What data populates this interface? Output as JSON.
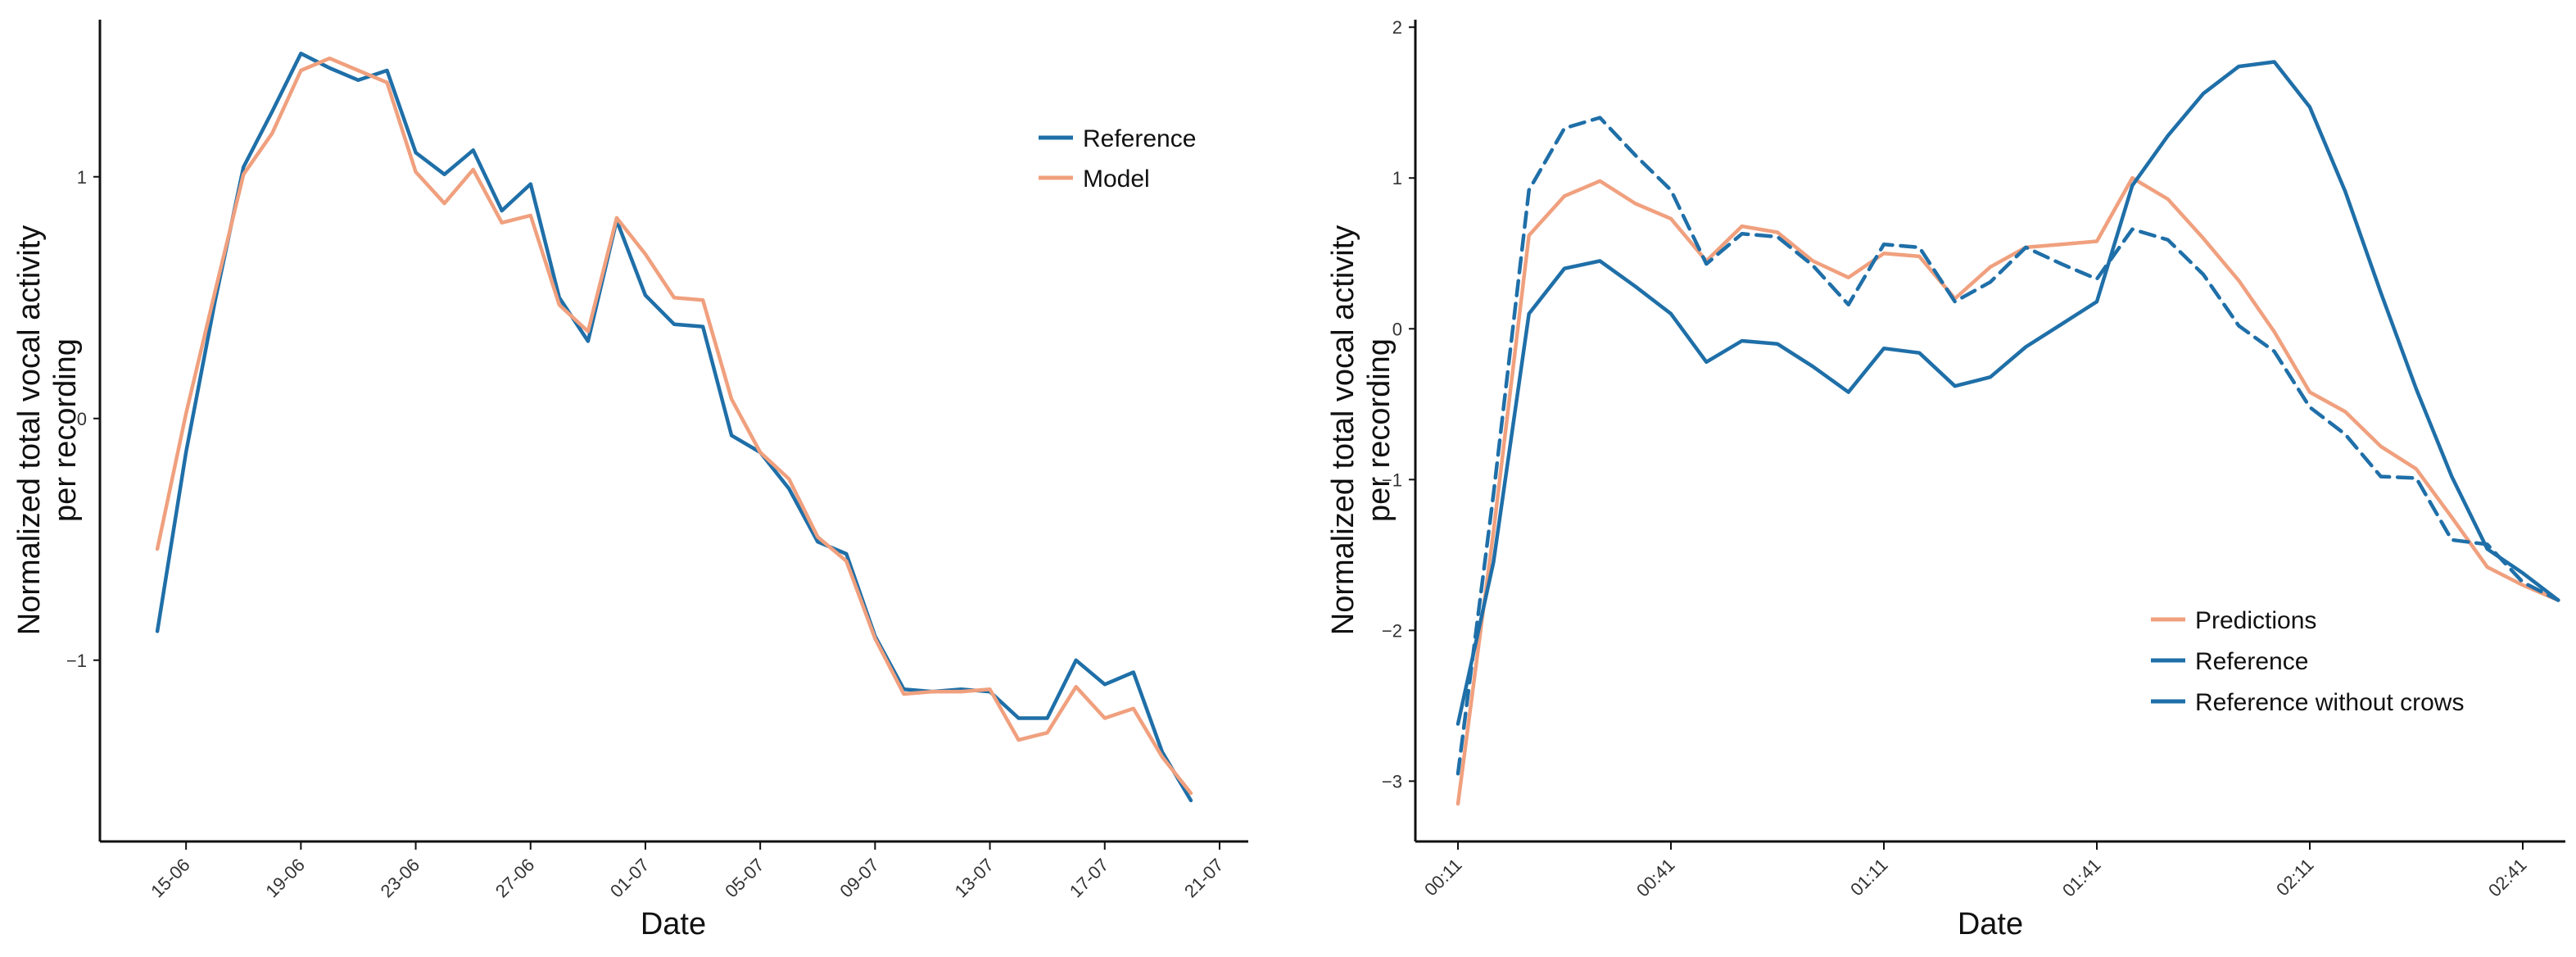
{
  "colors": {
    "reference": "#1f6fa8",
    "model": "#f0a07e",
    "axis": "#111111"
  },
  "chart_data": [
    {
      "type": "line",
      "xlabel": "Date",
      "ylabel_lines": [
        "Normalized total vocal activity",
        "per recording"
      ],
      "xlim": [
        "2023-06-12",
        "2023-07-22"
      ],
      "ylim": [
        -1.75,
        1.65
      ],
      "grid": false,
      "legend_position": "top-right",
      "x_ticks": [
        {
          "value": "2023-06-15",
          "label": "15-06"
        },
        {
          "value": "2023-06-19",
          "label": "19-06"
        },
        {
          "value": "2023-06-23",
          "label": "23-06"
        },
        {
          "value": "2023-06-27",
          "label": "27-06"
        },
        {
          "value": "2023-07-01",
          "label": "01-07"
        },
        {
          "value": "2023-07-05",
          "label": "05-07"
        },
        {
          "value": "2023-07-09",
          "label": "09-07"
        },
        {
          "value": "2023-07-13",
          "label": "13-07"
        },
        {
          "value": "2023-07-17",
          "label": "17-07"
        },
        {
          "value": "2023-07-21",
          "label": "21-07"
        }
      ],
      "y_ticks": [
        {
          "value": 1,
          "label": "1"
        },
        {
          "value": 0,
          "label": "0"
        },
        {
          "value": -1,
          "label": "−1"
        }
      ],
      "x": [
        "2023-06-14",
        "2023-06-15",
        "2023-06-16",
        "2023-06-17",
        "2023-06-18",
        "2023-06-19",
        "2023-06-20",
        "2023-06-21",
        "2023-06-22",
        "2023-06-23",
        "2023-06-24",
        "2023-06-25",
        "2023-06-26",
        "2023-06-27",
        "2023-06-28",
        "2023-06-29",
        "2023-06-30",
        "2023-07-01",
        "2023-07-02",
        "2023-07-03",
        "2023-07-04",
        "2023-07-05",
        "2023-07-06",
        "2023-07-07",
        "2023-07-08",
        "2023-07-09",
        "2023-07-10",
        "2023-07-11",
        "2023-07-12",
        "2023-07-13",
        "2023-07-14",
        "2023-07-15",
        "2023-07-16",
        "2023-07-17",
        "2023-07-18",
        "2023-07-19",
        "2023-07-20"
      ],
      "series": [
        {
          "name": "Reference",
          "color": "#1f6fa8",
          "dash": false,
          "values": [
            -0.88,
            -0.14,
            0.48,
            1.04,
            1.27,
            1.51,
            1.45,
            1.4,
            1.44,
            1.1,
            1.01,
            1.11,
            0.86,
            0.97,
            0.5,
            0.32,
            0.82,
            0.51,
            0.39,
            0.38,
            -0.07,
            -0.14,
            -0.29,
            -0.51,
            -0.56,
            -0.9,
            -1.12,
            -1.13,
            -1.12,
            -1.13,
            -1.24,
            -1.24,
            -1.0,
            -1.1,
            -1.05,
            -1.38,
            -1.58
          ]
        },
        {
          "name": "Model",
          "color": "#f0a07e",
          "dash": false,
          "values": [
            -0.54,
            0.02,
            0.52,
            1.01,
            1.18,
            1.44,
            1.49,
            1.44,
            1.39,
            1.02,
            0.89,
            1.03,
            0.81,
            0.84,
            0.47,
            0.36,
            0.83,
            0.68,
            0.5,
            0.49,
            0.08,
            -0.14,
            -0.25,
            -0.49,
            -0.59,
            -0.91,
            -1.14,
            -1.13,
            -1.13,
            -1.12,
            -1.33,
            -1.3,
            -1.11,
            -1.24,
            -1.2,
            -1.4,
            -1.55
          ]
        }
      ]
    },
    {
      "type": "line",
      "xlabel": "Date",
      "ylabel_lines": [
        "Normalized total vocal activity",
        "per recording"
      ],
      "xlim": [
        5,
        167
      ],
      "ylim": [
        -3.4,
        2.05
      ],
      "grid": false,
      "legend_position": "bottom-right",
      "x_ticks": [
        {
          "value": 11,
          "label": "00:11"
        },
        {
          "value": 41,
          "label": "00:41"
        },
        {
          "value": 71,
          "label": "01:11"
        },
        {
          "value": 101,
          "label": "01:41"
        },
        {
          "value": 131,
          "label": "02:11"
        },
        {
          "value": 161,
          "label": "02:41"
        }
      ],
      "y_ticks": [
        {
          "value": 2,
          "label": "2"
        },
        {
          "value": 1,
          "label": "1"
        },
        {
          "value": 0,
          "label": "0"
        },
        {
          "value": -1,
          "label": "−1"
        },
        {
          "value": -2,
          "label": "−2"
        },
        {
          "value": -3,
          "label": "−3"
        }
      ],
      "x": [
        11,
        16,
        21,
        26,
        31,
        36,
        41,
        46,
        51,
        56,
        61,
        66,
        71,
        76,
        81,
        86,
        91,
        96,
        101,
        106,
        111,
        116,
        121,
        126,
        131,
        136,
        141,
        146,
        151,
        156,
        161,
        166
      ],
      "series": [
        {
          "name": "Predictions",
          "color": "#f0a07e",
          "dash": false,
          "values": [
            -3.15,
            -1.35,
            0.62,
            0.88,
            0.98,
            0.83,
            0.73,
            0.45,
            0.68,
            0.64,
            0.45,
            0.34,
            0.5,
            0.48,
            0.2,
            0.41,
            0.54,
            0.56,
            0.58,
            1.0,
            0.86,
            0.6,
            0.32,
            -0.02,
            -0.42,
            -0.55,
            -0.78,
            -0.93,
            -1.25,
            -1.58,
            -1.7,
            -1.8
          ]
        },
        {
          "name": "Reference",
          "color": "#1f6fa8",
          "dash": false,
          "values": [
            -2.62,
            -1.55,
            0.1,
            0.4,
            0.45,
            0.28,
            0.1,
            -0.22,
            -0.08,
            -0.1,
            -0.25,
            -0.42,
            -0.13,
            -0.16,
            -0.38,
            -0.32,
            -0.12,
            0.03,
            0.18,
            0.95,
            1.28,
            1.56,
            1.74,
            1.77,
            1.47,
            0.91,
            0.24,
            -0.4,
            -0.98,
            -1.46,
            -1.62,
            -1.8
          ]
        },
        {
          "name": "Reference without crows",
          "color": "#1f6fa8",
          "dash": true,
          "values": [
            -2.95,
            -1.1,
            0.92,
            1.33,
            1.4,
            1.15,
            0.92,
            0.43,
            0.63,
            0.61,
            0.42,
            0.16,
            0.56,
            0.54,
            0.18,
            0.31,
            0.54,
            0.43,
            0.33,
            0.66,
            0.59,
            0.36,
            0.02,
            -0.15,
            -0.52,
            -0.7,
            -0.98,
            -0.99,
            -1.4,
            -1.43,
            -1.68,
            -1.8
          ]
        }
      ]
    }
  ]
}
